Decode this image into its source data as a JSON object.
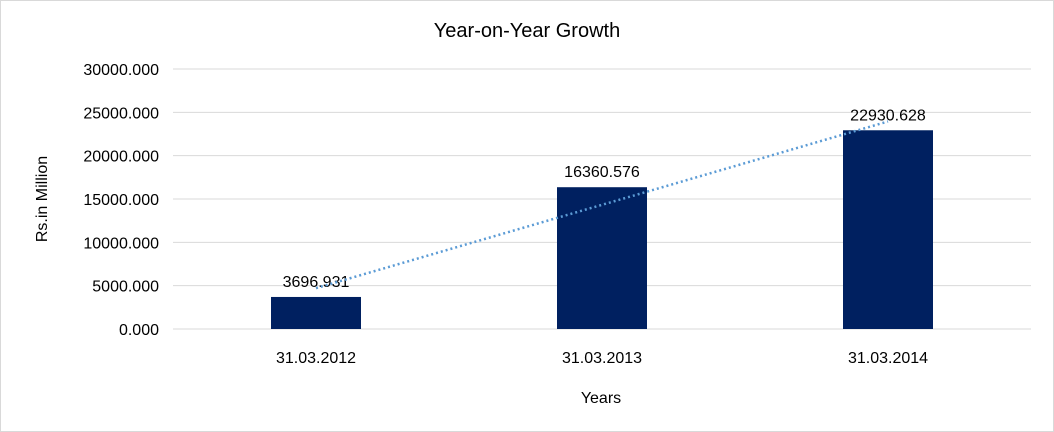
{
  "chart_data": {
    "type": "bar",
    "title": "Year-on-Year Growth",
    "xlabel": "Years",
    "ylabel": "Rs.in Million",
    "categories": [
      "31.03.2012",
      "31.03.2013",
      "31.03.2014"
    ],
    "values": [
      3696.931,
      16360.576,
      22930.628
    ],
    "data_labels": [
      "3696.931",
      "16360.576",
      "22930.628"
    ],
    "y_ticks": [
      "0.000",
      "5000.000",
      "10000.000",
      "15000.000",
      "20000.000",
      "25000.000",
      "30000.000"
    ],
    "ylim": [
      0,
      30000
    ],
    "grid": true,
    "legend": "none",
    "trendline": {
      "type": "linear",
      "style": "dotted"
    },
    "colors": {
      "bar": "#002060",
      "trendline": "#5b9bd5",
      "grid": "#d9d9d9",
      "border": "#d9d9d9"
    }
  }
}
